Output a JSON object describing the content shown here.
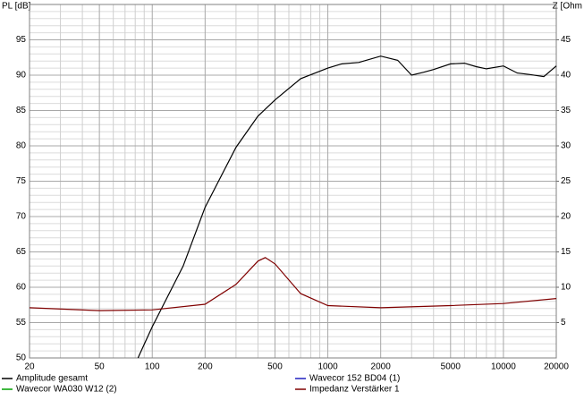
{
  "chart_data": {
    "type": "line",
    "ylabel": "PL [dB]",
    "y2label": "Z [Ohm",
    "xlog": true,
    "xlim": [
      20,
      20000
    ],
    "xticks": [
      20,
      50,
      100,
      200,
      500,
      1000,
      2000,
      5000,
      10000,
      20000
    ],
    "xminor": [
      30,
      40,
      60,
      70,
      80,
      90,
      300,
      400,
      600,
      700,
      800,
      900,
      3000,
      4000,
      6000,
      7000,
      8000,
      9000
    ],
    "ylim": [
      50,
      100
    ],
    "yticks": [
      50,
      55,
      60,
      65,
      70,
      75,
      80,
      85,
      90,
      95
    ],
    "yminor": [
      51,
      52,
      53,
      54,
      56,
      57,
      58,
      59,
      61,
      62,
      63,
      64,
      66,
      67,
      68,
      69,
      71,
      72,
      73,
      74,
      76,
      77,
      78,
      79,
      81,
      82,
      83,
      84,
      86,
      87,
      88,
      89,
      91,
      92,
      93,
      94,
      96,
      97,
      98,
      99
    ],
    "y2lim": [
      0,
      50
    ],
    "y2ticks": [
      5,
      10,
      15,
      20,
      25,
      30,
      35,
      40,
      45
    ],
    "grid": true,
    "series": [
      {
        "name": "Amplitude gesamt",
        "color": "#000000",
        "x": [
          83,
          100,
          150,
          200,
          300,
          400,
          500,
          700,
          1000,
          1200,
          1500,
          2000,
          2500,
          3000,
          3500,
          4000,
          5000,
          6000,
          7000,
          8000,
          10000,
          12000,
          14000,
          17000,
          20000
        ],
        "values": [
          50,
          54.4,
          63,
          71.3,
          79.8,
          84.2,
          86.5,
          89.5,
          91,
          91.6,
          91.8,
          92.7,
          92.1,
          90,
          90.4,
          90.8,
          91.6,
          91.7,
          91.2,
          90.9,
          91.3,
          90.3,
          90.1,
          89.8,
          91.3
        ]
      },
      {
        "name": "Wavecor WA030 W12 (2)",
        "color": "#00a000",
        "x": [],
        "values": []
      },
      {
        "name": "Wavecor 152 BD04 (1)",
        "color": "#2020c0",
        "x": [],
        "values": []
      },
      {
        "name": "Impedanz Verstärker 1",
        "color": "#800000",
        "axis": "y2",
        "x": [
          20,
          50,
          100,
          200,
          300,
          400,
          440,
          500,
          700,
          1000,
          2000,
          5000,
          10000,
          20000
        ],
        "values": [
          7.1,
          6.7,
          6.8,
          7.6,
          10.4,
          13.7,
          14.2,
          13.3,
          9.1,
          7.4,
          7.1,
          7.4,
          7.7,
          8.4
        ]
      }
    ]
  }
}
